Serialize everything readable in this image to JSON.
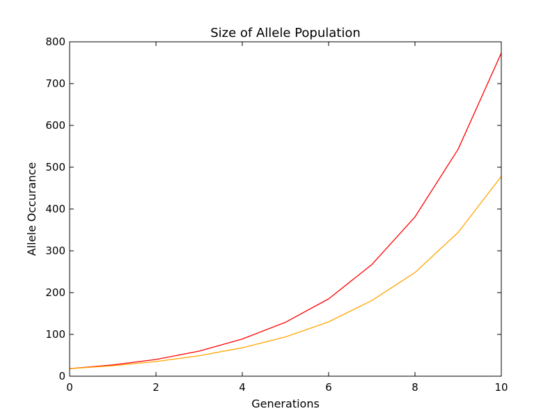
{
  "chart_data": {
    "type": "line",
    "title": "Size of Allele Population",
    "xlabel": "Generations",
    "ylabel": "Allele Occurance",
    "xlim": [
      0,
      10
    ],
    "ylim": [
      0,
      800
    ],
    "xticks": [
      0,
      2,
      4,
      6,
      8,
      10
    ],
    "yticks": [
      0,
      100,
      200,
      300,
      400,
      500,
      600,
      700,
      800
    ],
    "grid": false,
    "x": [
      0,
      1,
      2,
      3,
      4,
      5,
      6,
      7,
      8,
      9,
      10
    ],
    "series": [
      {
        "color": "#ff0000",
        "values": [
          18,
          27,
          40,
          60,
          89,
          129,
          185,
          267,
          381,
          543,
          773
        ]
      },
      {
        "color": "#ffa500",
        "values": [
          18,
          25,
          35,
          49,
          68,
          94,
          130,
          181,
          248,
          344,
          478
        ]
      }
    ]
  }
}
